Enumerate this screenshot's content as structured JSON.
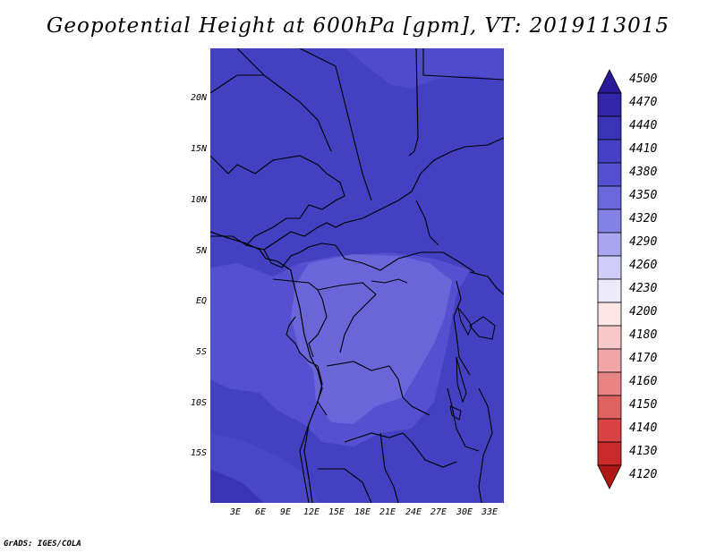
{
  "title": "Geopotential Height at 600hPa [gpm], VT: 2019113015",
  "credit": "GrADS: IGES/COLA",
  "map": {
    "y_ticks": [
      "20N",
      "15N",
      "10N",
      "5N",
      "EQ",
      "5S",
      "10S",
      "15S"
    ],
    "x_ticks": [
      "3E",
      "6E",
      "9E",
      "12E",
      "15E",
      "18E",
      "21E",
      "24E",
      "27E",
      "30E",
      "33E"
    ]
  },
  "colorbar": {
    "labels": [
      "4500",
      "4470",
      "4440",
      "4410",
      "4380",
      "4350",
      "4320",
      "4290",
      "4260",
      "4230",
      "4200",
      "4180",
      "4170",
      "4160",
      "4150",
      "4140",
      "4130",
      "4120"
    ],
    "colors": [
      "#2a1a9a",
      "#3326a8",
      "#3b33b5",
      "#4540c4",
      "#5550d0",
      "#6a66dc",
      "#8582e6",
      "#a9a6ef",
      "#cfccf7",
      "#ece9fb",
      "#fde6e6",
      "#f7c8c8",
      "#f0a6a6",
      "#e88484",
      "#df6262",
      "#d84242",
      "#c82a2a",
      "#b01818"
    ]
  },
  "fill_colors": {
    "high": "#4440c2",
    "mid": "#544fcf",
    "low": "#6c68da"
  }
}
